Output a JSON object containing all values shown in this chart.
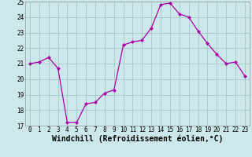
{
  "x": [
    0,
    1,
    2,
    3,
    4,
    5,
    6,
    7,
    8,
    9,
    10,
    11,
    12,
    13,
    14,
    15,
    16,
    17,
    18,
    19,
    20,
    21,
    22,
    23
  ],
  "y": [
    21.0,
    21.1,
    21.4,
    20.7,
    17.2,
    17.2,
    18.4,
    18.5,
    19.1,
    19.3,
    22.2,
    22.4,
    22.5,
    23.3,
    24.8,
    24.9,
    24.2,
    24.0,
    23.1,
    22.3,
    21.6,
    21.0,
    21.1,
    20.2
  ],
  "line_color": "#aa00aa",
  "marker": "D",
  "marker_size": 2.0,
  "bg_color": "#cce8ea",
  "grid_color": "#aacccc",
  "xlabel": "Windchill (Refroidissement éolien,°C)",
  "ylabel": "",
  "xlim": [
    -0.5,
    23.5
  ],
  "ylim": [
    17,
    25
  ],
  "yticks": [
    17,
    18,
    19,
    20,
    21,
    22,
    23,
    24,
    25
  ],
  "xticks": [
    0,
    1,
    2,
    3,
    4,
    5,
    6,
    7,
    8,
    9,
    10,
    11,
    12,
    13,
    14,
    15,
    16,
    17,
    18,
    19,
    20,
    21,
    22,
    23
  ],
  "tick_label_fontsize": 5.5,
  "xlabel_fontsize": 7.0
}
